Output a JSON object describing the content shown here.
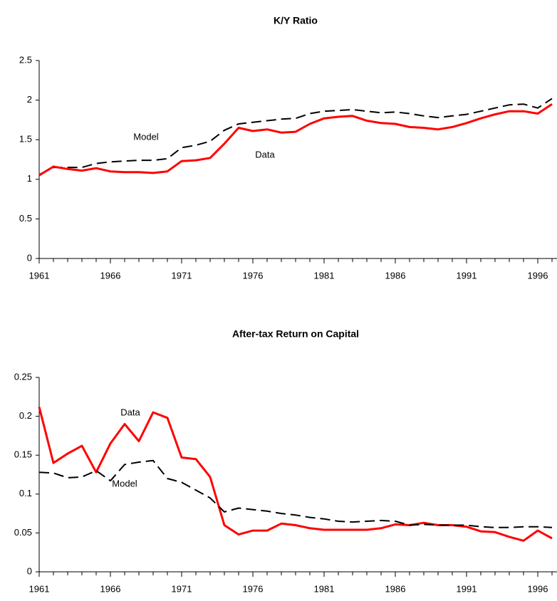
{
  "chart_data": [
    {
      "type": "line",
      "title": "K/Y Ratio",
      "x": [
        1961,
        1962,
        1963,
        1964,
        1965,
        1966,
        1967,
        1968,
        1969,
        1970,
        1971,
        1972,
        1973,
        1974,
        1975,
        1976,
        1977,
        1978,
        1979,
        1980,
        1981,
        1982,
        1983,
        1984,
        1985,
        1986,
        1987,
        1988,
        1989,
        1990,
        1991,
        1992,
        1993,
        1994,
        1995,
        1996,
        1997
      ],
      "xlim": [
        1961,
        1997
      ],
      "xticks": [
        1961,
        1966,
        1971,
        1976,
        1981,
        1986,
        1991,
        1996
      ],
      "ylim": [
        0,
        2.5
      ],
      "yticks": [
        0,
        0.5,
        1,
        1.5,
        2,
        2.5
      ],
      "series": [
        {
          "name": "Model",
          "color": "#000000",
          "dash": true,
          "values": [
            1.06,
            1.15,
            1.15,
            1.15,
            1.2,
            1.22,
            1.23,
            1.24,
            1.24,
            1.26,
            1.4,
            1.43,
            1.48,
            1.62,
            1.7,
            1.72,
            1.74,
            1.76,
            1.77,
            1.83,
            1.86,
            1.87,
            1.88,
            1.86,
            1.84,
            1.85,
            1.83,
            1.8,
            1.78,
            1.8,
            1.82,
            1.86,
            1.9,
            1.94,
            1.95,
            1.9,
            2.02
          ]
        },
        {
          "name": "Data",
          "color": "#ff0000",
          "dash": false,
          "values": [
            1.05,
            1.16,
            1.13,
            1.11,
            1.14,
            1.1,
            1.09,
            1.09,
            1.08,
            1.1,
            1.23,
            1.24,
            1.27,
            1.45,
            1.65,
            1.61,
            1.63,
            1.59,
            1.6,
            1.7,
            1.77,
            1.79,
            1.8,
            1.74,
            1.71,
            1.7,
            1.66,
            1.65,
            1.63,
            1.66,
            1.71,
            1.77,
            1.82,
            1.86,
            1.86,
            1.83,
            1.95
          ]
        }
      ]
    },
    {
      "type": "line",
      "title": "After-tax Return on Capital",
      "x": [
        1961,
        1962,
        1963,
        1964,
        1965,
        1966,
        1967,
        1968,
        1969,
        1970,
        1971,
        1972,
        1973,
        1974,
        1975,
        1976,
        1977,
        1978,
        1979,
        1980,
        1981,
        1982,
        1983,
        1984,
        1985,
        1986,
        1987,
        1988,
        1989,
        1990,
        1991,
        1992,
        1993,
        1994,
        1995,
        1996,
        1997
      ],
      "xlim": [
        1961,
        1997
      ],
      "xticks": [
        1961,
        1966,
        1971,
        1976,
        1981,
        1986,
        1991,
        1996
      ],
      "ylim": [
        0,
        0.25
      ],
      "yticks": [
        0,
        0.05,
        0.1,
        0.15,
        0.2,
        0.25
      ],
      "series": [
        {
          "name": "Data",
          "color": "#ff0000",
          "dash": false,
          "values": [
            0.212,
            0.14,
            0.152,
            0.162,
            0.128,
            0.165,
            0.19,
            0.168,
            0.205,
            0.198,
            0.147,
            0.145,
            0.122,
            0.06,
            0.048,
            0.053,
            0.053,
            0.062,
            0.06,
            0.056,
            0.054,
            0.054,
            0.054,
            0.054,
            0.056,
            0.061,
            0.06,
            0.063,
            0.06,
            0.06,
            0.058,
            0.052,
            0.051,
            0.045,
            0.04,
            0.053,
            0.043
          ]
        },
        {
          "name": "Model",
          "color": "#000000",
          "dash": true,
          "values": [
            0.128,
            0.127,
            0.121,
            0.122,
            0.13,
            0.117,
            0.138,
            0.141,
            0.143,
            0.12,
            0.115,
            0.105,
            0.095,
            0.077,
            0.082,
            0.08,
            0.078,
            0.075,
            0.073,
            0.07,
            0.068,
            0.065,
            0.064,
            0.065,
            0.066,
            0.065,
            0.06,
            0.061,
            0.06,
            0.06,
            0.06,
            0.058,
            0.057,
            0.057,
            0.058,
            0.058,
            0.057
          ]
        }
      ]
    }
  ]
}
